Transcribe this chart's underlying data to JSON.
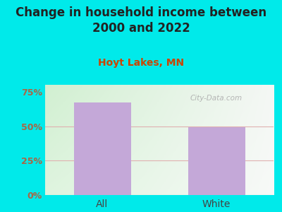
{
  "title": "Change in household income between\n2000 and 2022",
  "subtitle": "Hoyt Lakes, MN",
  "categories": [
    "All",
    "White"
  ],
  "values": [
    67.0,
    49.0
  ],
  "bar_color": "#c4a8d8",
  "title_fontsize": 12,
  "title_color": "#222222",
  "subtitle_fontsize": 10,
  "subtitle_color": "#cc4400",
  "background_color": "#00eaea",
  "yticks": [
    0,
    25,
    50,
    75
  ],
  "ytick_labels": [
    "0%",
    "25%",
    "50%",
    "75%"
  ],
  "ytick_color": "#aa6644",
  "xtick_color": "#444444",
  "grid_color": "#e0b0b0",
  "watermark": "City-Data.com",
  "watermark_color": "#aaaaaa",
  "ylim": [
    0,
    80
  ]
}
